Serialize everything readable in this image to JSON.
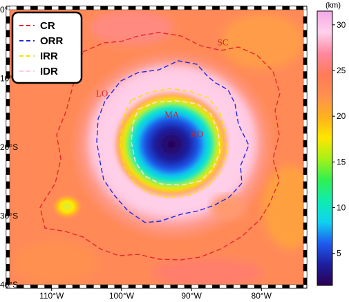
{
  "map": {
    "lon_range": [
      -116,
      -74
    ],
    "lat_range": [
      -40,
      0
    ],
    "center": {
      "lon": -94,
      "lat": -19
    },
    "x_ticks": [
      {
        "lon": -110,
        "label": "110°W"
      },
      {
        "lon": -100,
        "label": "100°W"
      },
      {
        "lon": -90,
        "label": "90°W"
      },
      {
        "lon": -80,
        "label": "80°W"
      }
    ],
    "y_ticks": [
      {
        "lat": 0,
        "label": "0°"
      },
      {
        "lat": -10,
        "label": "10°S"
      },
      {
        "lat": -20,
        "label": "20°S"
      },
      {
        "lat": -30,
        "label": "30°S"
      },
      {
        "lat": -40,
        "label": "40°S"
      }
    ],
    "region_labels": [
      {
        "text": "SC",
        "lon": -85.5,
        "lat": -5.2
      },
      {
        "text": "LO",
        "lon": -102.8,
        "lat": -12.6
      },
      {
        "text": "MA",
        "lon": -92.8,
        "lat": -15.7
      },
      {
        "text": "KO",
        "lon": -89.2,
        "lat": -18.5
      }
    ]
  },
  "legend": {
    "items": [
      {
        "label": "CR",
        "color": "#e8262a"
      },
      {
        "label": "ORR",
        "color": "#1e28e6"
      },
      {
        "label": "IRR",
        "color": "#f2e300"
      },
      {
        "label": "IDR",
        "color": "#ffc8e6"
      }
    ]
  },
  "colorbar": {
    "unit": "(km)",
    "min": 1.5,
    "max": 31.5,
    "ticks": [
      5,
      10,
      15,
      20,
      25,
      30
    ],
    "colors": [
      "#2a0050",
      "#1e1ea0",
      "#1e5cf0",
      "#10d2f0",
      "#10ecb0",
      "#30f050",
      "#a8f018",
      "#ffe600",
      "#ffb01e",
      "#ff9050",
      "#ff7a58",
      "#ff88a0",
      "#ffd0ec",
      "#f4a8e6"
    ]
  }
}
